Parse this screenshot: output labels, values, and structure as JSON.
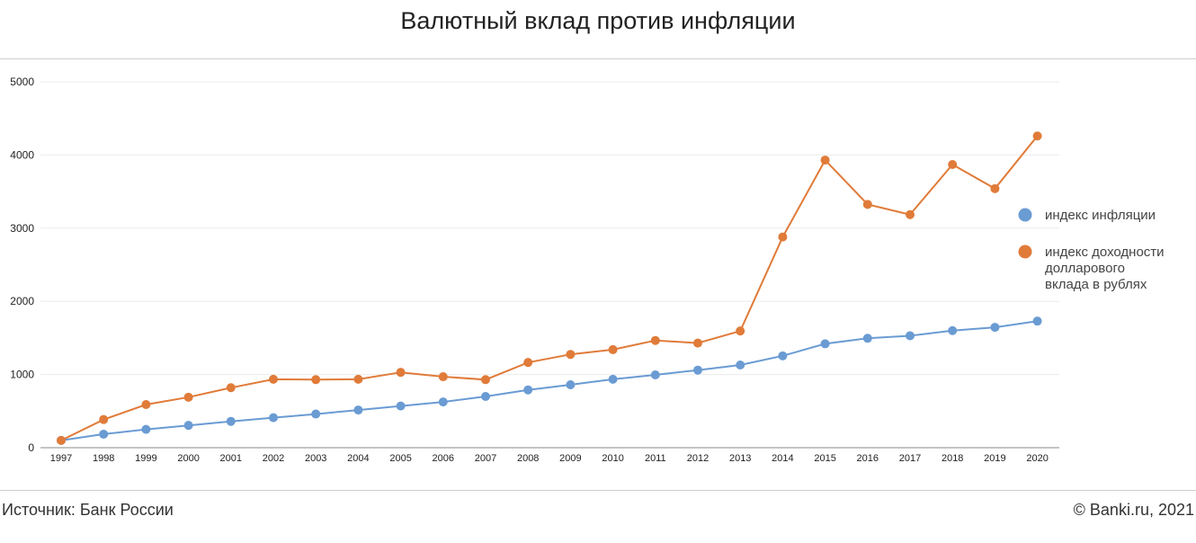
{
  "chart_data": {
    "type": "line",
    "title": "Валютный вклад против инфляции",
    "xlabel": "",
    "ylabel": "",
    "ylim": [
      0,
      5000
    ],
    "yticks": [
      0,
      1000,
      2000,
      3000,
      4000,
      5000
    ],
    "grid": true,
    "legend_position": "right",
    "categories": [
      "1997",
      "1998",
      "1999",
      "2000",
      "2001",
      "2002",
      "2003",
      "2004",
      "2005",
      "2006",
      "2007",
      "2008",
      "2009",
      "2010",
      "2011",
      "2012",
      "2013",
      "2014",
      "2015",
      "2016",
      "2017",
      "2018",
      "2019",
      "2020"
    ],
    "series": [
      {
        "name": "индекс инфляции",
        "color": "#6a9bd3",
        "values": [
          100,
          185,
          250,
          305,
          360,
          410,
          460,
          515,
          570,
          625,
          700,
          790,
          860,
          935,
          995,
          1060,
          1130,
          1255,
          1420,
          1495,
          1530,
          1600,
          1645,
          1730
        ]
      },
      {
        "name": "индекс доходности долларового вклада в рублях",
        "name_lines": [
          "индекс доходности",
          "долларового",
          "вклада в рублях"
        ],
        "color": "#e07b39",
        "values": [
          100,
          385,
          590,
          690,
          820,
          935,
          930,
          935,
          1030,
          970,
          930,
          1165,
          1275,
          1340,
          1465,
          1430,
          1595,
          2880,
          3930,
          3325,
          3185,
          3870,
          3540,
          4260
        ]
      }
    ]
  },
  "footer": {
    "source": "Источник: Банк России",
    "copyright": "© Banki.ru, 2021"
  }
}
